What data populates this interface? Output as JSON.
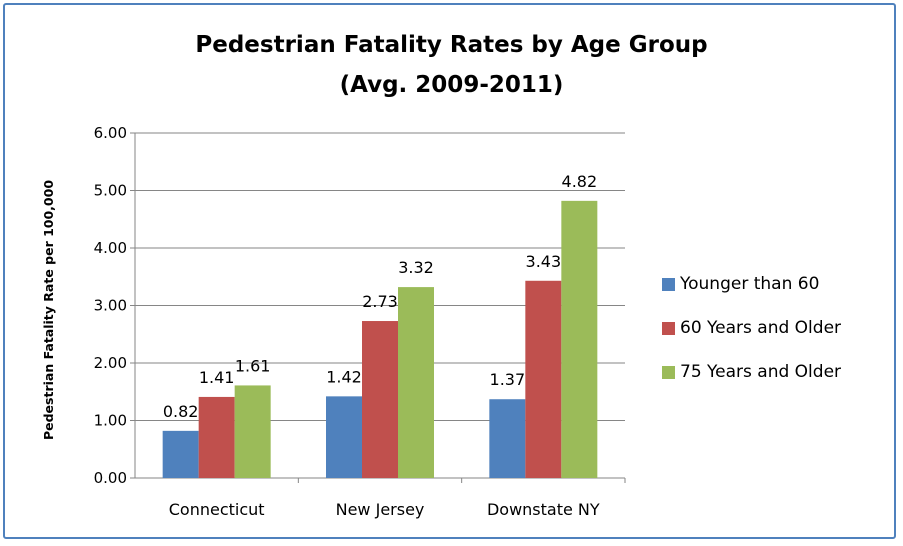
{
  "chart_data": {
    "type": "bar",
    "title": "Pedestrian Fatality Rates by Age Group",
    "subtitle": "(Avg. 2009-2011)",
    "ylabel": "Pedestrian Fatality Rate per 100,000",
    "xlabel": "",
    "ylim": [
      0,
      6
    ],
    "yticks": [
      "0.00",
      "1.00",
      "2.00",
      "3.00",
      "4.00",
      "5.00",
      "6.00"
    ],
    "categories": [
      "Connecticut",
      "New Jersey",
      "Downstate NY"
    ],
    "series": [
      {
        "name": "Younger than 60",
        "color": "#4f81bd",
        "values": [
          0.82,
          1.42,
          1.37
        ],
        "labels": [
          "0.82",
          "1.42",
          "1.37"
        ]
      },
      {
        "name": "60 Years and Older",
        "color": "#c0504d",
        "values": [
          1.41,
          2.73,
          3.43
        ],
        "labels": [
          "1.41",
          "2.73",
          "3.43"
        ]
      },
      {
        "name": "75 Years and Older",
        "color": "#9bbb59",
        "values": [
          1.61,
          3.32,
          4.82
        ],
        "labels": [
          "1.61",
          "3.32",
          "4.82"
        ]
      }
    ],
    "grid": true,
    "legend": "right"
  }
}
